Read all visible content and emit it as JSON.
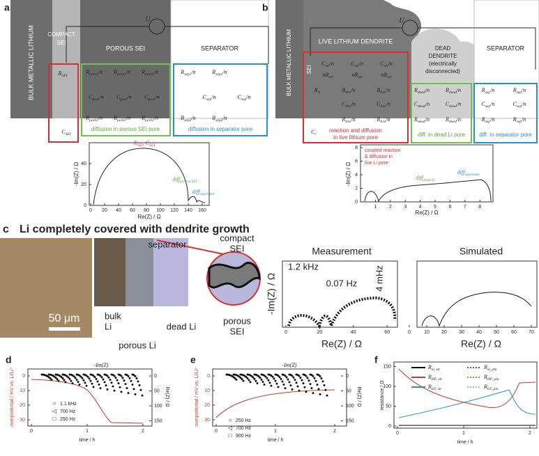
{
  "panel_a": {
    "label": "a",
    "bulk": "BULK METALLIC LITHIUM",
    "compact": [
      "COMPACT",
      "SEI"
    ],
    "porous": "POROUS SEI",
    "separator": "SEPARATOR",
    "source": "U",
    "r_sei": [
      "R",
      "SEI"
    ],
    "c_sei": [
      "C",
      "SEI"
    ],
    "r_pore1": [
      "R",
      "pore1",
      "/n"
    ],
    "c_pore": [
      "C",
      "pore",
      "/n"
    ],
    "r_pore2": [
      "R",
      "pore2",
      "/n"
    ],
    "r_sep1": [
      "R",
      "sep1",
      "/n"
    ],
    "c_sep": [
      "C",
      "sep",
      "/n"
    ],
    "r_sep2": [
      "R",
      "sep2",
      "/n"
    ],
    "caption_porous": "diffusion in porous SEI pore",
    "caption_separator": "diffusion in separator pore",
    "plot": {
      "xlabel": "Re(Z) / Ω",
      "ylabel": "-Im(Z) / Ω",
      "xticks": [
        0,
        20,
        40,
        60,
        80,
        100,
        120,
        140,
        160
      ],
      "yticks": [
        0,
        20,
        40
      ],
      "ann_sei": [
        "R",
        "SEI",
        ", C",
        "SEI"
      ],
      "ann_porous": [
        "diff",
        "porous SEI"
      ],
      "ann_sep": [
        "diff",
        "separator"
      ]
    }
  },
  "panel_b": {
    "label": "b",
    "bulk": "BULK METALLIC LITHIUM",
    "sei": "SEI",
    "live": "LIVE LITHIUM DENDRITE",
    "dead": [
      "DEAD",
      "DENDRITE",
      "(electrically",
      "disconnected)"
    ],
    "separator": "SEPARATOR",
    "source": "U",
    "r_sl": [
      "R",
      "sl"
    ],
    "c_c": [
      "C",
      "c"
    ],
    "c_sei": [
      "C",
      "sei",
      "/n"
    ],
    "nr_sei": [
      "nR",
      "sei"
    ],
    "r_live": [
      "R",
      "live",
      "/n"
    ],
    "c_live": [
      "C",
      "live",
      "/n"
    ],
    "r_dead": [
      "R",
      "dead",
      "/n"
    ],
    "c_dead": [
      "C",
      "dead",
      "/n"
    ],
    "r_sep": [
      "R",
      "sep",
      "/n"
    ],
    "c_sep": [
      "C",
      "sep",
      "/n"
    ],
    "caption_live": [
      "reaction and diffusion",
      "in live lithium pore"
    ],
    "caption_dead": "diff. in dead Li pore",
    "caption_separator": "diff. in separator pore",
    "plot": {
      "xlabel": "Re(Z) / Ω",
      "ylabel": "-Im(Z) / Ω",
      "xticks": [
        1,
        2,
        3,
        4,
        5,
        6,
        7,
        8
      ],
      "yticks": [
        0,
        2,
        4,
        6,
        8
      ],
      "ann_live": [
        "coupled reaction",
        "& diffusion in",
        "live Li pore"
      ],
      "ann_dead": [
        "diff",
        "dead Li"
      ],
      "ann_sep": [
        "diff",
        "separator"
      ]
    }
  },
  "panel_c": {
    "label": "c",
    "title": "Li completely covered with dendrite growth",
    "scale": "50 μm",
    "separator": "separator",
    "bulk": [
      "bulk",
      "Li"
    ],
    "porous_li": "porous Li",
    "dead_li": "dead Li",
    "compact_sei": [
      "compact",
      "SEI"
    ],
    "porous_sei": [
      "porous",
      "SEI"
    ],
    "measurement": {
      "title": "Measurement",
      "xlabel": "Re(Z) / Ω",
      "ylabel": "-Im(Z) / Ω",
      "xticks": [
        0,
        20,
        40,
        60
      ],
      "annotations": [
        "1.2 kHz",
        "0.07 Hz",
        "4 mHz"
      ]
    },
    "simulated": {
      "title": "Simulated",
      "xlabel": "Re(Z) / Ω",
      "xticks": [
        0,
        10,
        20,
        30,
        40,
        50,
        60,
        70
      ]
    }
  },
  "panel_d": {
    "label": "d",
    "top_label": "-Im(Z)",
    "ylabel": "overpotential / mV vs. Li/Li⁺",
    "y2label": "Re(Z) / Ω",
    "xlabel": "time / h",
    "yticks": [
      0,
      10,
      20,
      30
    ],
    "y2ticks": [
      0,
      50,
      100,
      150
    ],
    "xticks": [
      0,
      1,
      2
    ],
    "legend": [
      "1.1 kHz",
      "700 Hz",
      "250 Hz"
    ]
  },
  "panel_e": {
    "label": "e",
    "top_label": "-Im(Z)",
    "ylabel": "overpotential / mV vs. Li/Li⁺",
    "y2label": "Re(Z) / Ω",
    "xlabel": "time / h",
    "yticks": [
      0,
      10,
      20,
      30
    ],
    "y2ticks": [
      0,
      50,
      100,
      150
    ],
    "xticks": [
      0,
      1,
      2
    ],
    "legend": [
      "250 Hz",
      "700 Hz",
      "900 Hz"
    ]
  },
  "panel_f": {
    "label": "f",
    "ylabel": "resistance / Ω",
    "xlabel": "time / h",
    "yticks": [
      0,
      50,
      100,
      150
    ],
    "xticks": [
      0,
      1,
      2
    ],
    "legend": [
      {
        "parts": [
          "R",
          "sl, str"
        ],
        "color": "#000000"
      },
      {
        "parts": [
          "R",
          "sl, pla"
        ],
        "color": "#555555"
      },
      {
        "parts": [
          "R",
          "HF, str"
        ],
        "color": "#c0392b"
      },
      {
        "parts": [
          "R",
          "HF, pla"
        ],
        "color": "#e07050"
      },
      {
        "parts": [
          "R",
          "LF, str"
        ],
        "color": "#2a8fbf"
      },
      {
        "parts": [
          "R",
          "LF, pla"
        ],
        "color": "#7fc8e0"
      }
    ]
  }
}
